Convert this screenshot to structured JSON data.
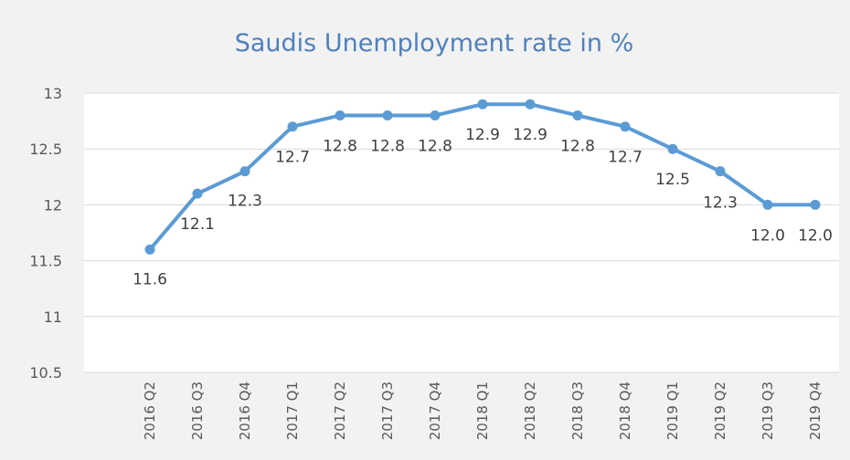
{
  "chart_data": {
    "type": "line",
    "title": "Saudis Unemployment rate in %",
    "xlabel": "",
    "ylabel": "",
    "categories": [
      "2016 Q2",
      "2016 Q3",
      "2016 Q4",
      "2017 Q1",
      "2017 Q2",
      "2017 Q3",
      "2017 Q4",
      "2018 Q1",
      "2018 Q2",
      "2018 Q3",
      "2018 Q4",
      "2019 Q1",
      "2019 Q2",
      "2019 Q3",
      "2019 Q4"
    ],
    "series": [
      {
        "values": [
          11.6,
          12.1,
          12.3,
          12.7,
          12.8,
          12.8,
          12.8,
          12.9,
          12.9,
          12.8,
          12.7,
          12.5,
          12.3,
          12.0,
          12.0
        ]
      }
    ],
    "data_labels": [
      "11.6",
      "12.1",
      "12.3",
      "12.7",
      "12.8",
      "12.8",
      "12.8",
      "12.9",
      "12.9",
      "12.8",
      "12.7",
      "12.5",
      "12.3",
      "12.0",
      "12.0"
    ],
    "ylim": [
      10.5,
      13
    ],
    "yticks": [
      "13",
      "12.5",
      "12",
      "11.5",
      "11",
      "10.5"
    ],
    "grid": true,
    "legend": "none",
    "colors": {
      "line": "#5b9bd5",
      "grid": "#d9d9d9",
      "title": "#4f81bd",
      "background": "#f2f2f2",
      "plot": "#ffffff"
    }
  }
}
